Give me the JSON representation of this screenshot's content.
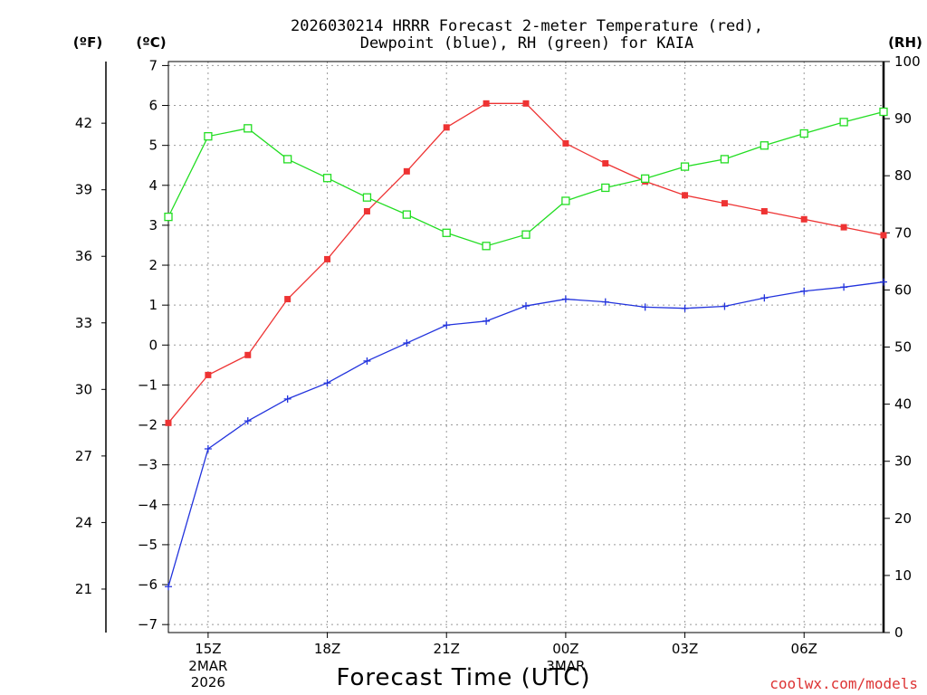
{
  "chart_data": {
    "type": "line",
    "title_lines": [
      "2026030214 HRRR Forecast 2-meter Temperature (red),",
      "Dewpoint (blue), RH (green) for KAIA"
    ],
    "xlabel": "Forecast Time (UTC)",
    "left_axis_unit": "(ºC)",
    "far_left_axis_unit": "(ºF)",
    "right_axis_unit": "(RH)",
    "credit": "coolwx.com/models",
    "x_ticks": [
      {
        "hour": 15,
        "label": "15Z",
        "date": "2MAR",
        "year": "2026"
      },
      {
        "hour": 18,
        "label": "18Z"
      },
      {
        "hour": 21,
        "label": "21Z"
      },
      {
        "hour": 24,
        "label": "00Z",
        "date": "3MAR"
      },
      {
        "hour": 27,
        "label": "03Z"
      },
      {
        "hour": 30,
        "label": "06Z"
      }
    ],
    "x_range": [
      14,
      32
    ],
    "x": [
      14,
      15,
      16,
      17,
      18,
      19,
      20,
      21,
      22,
      23,
      24,
      25,
      26,
      27,
      28,
      29,
      30,
      31,
      32
    ],
    "ylim_celsius": [
      -7.2,
      7.1
    ],
    "y_ticks_celsius": [
      -7,
      -6,
      -5,
      -4,
      -3,
      -2,
      -1,
      0,
      1,
      2,
      3,
      4,
      5,
      6,
      7
    ],
    "y_ticks_fahrenheit": [
      21,
      24,
      27,
      30,
      33,
      36,
      39,
      42
    ],
    "ylim_rh": [
      0,
      100
    ],
    "y_ticks_rh": [
      0,
      10,
      20,
      30,
      40,
      50,
      60,
      70,
      80,
      90,
      100
    ],
    "grid": true,
    "series": [
      {
        "name": "Temperature",
        "axis": "celsius",
        "color": "#ee3333",
        "marker": "filled-square",
        "values": [
          -1.95,
          -0.75,
          -0.25,
          1.15,
          2.15,
          3.35,
          4.35,
          5.45,
          6.05,
          6.05,
          5.05,
          4.55,
          4.1,
          3.75,
          3.55,
          3.35,
          3.15,
          2.95,
          2.75
        ]
      },
      {
        "name": "Dewpoint",
        "axis": "celsius",
        "color": "#2233dd",
        "marker": "plus",
        "values": [
          -6.05,
          -2.6,
          -1.9,
          -1.35,
          -0.95,
          -0.4,
          0.05,
          0.5,
          0.6,
          0.98,
          1.15,
          1.08,
          0.95,
          0.92,
          0.97,
          1.18,
          1.35,
          1.45,
          1.58
        ]
      },
      {
        "name": "RH",
        "axis": "rh",
        "color": "#22dd22",
        "marker": "open-square",
        "values": [
          72.8,
          86.9,
          88.3,
          82.9,
          79.6,
          76.2,
          73.2,
          70.0,
          67.7,
          69.7,
          75.6,
          77.9,
          79.5,
          81.6,
          82.9,
          85.3,
          87.4,
          89.4,
          91.2
        ]
      }
    ]
  }
}
